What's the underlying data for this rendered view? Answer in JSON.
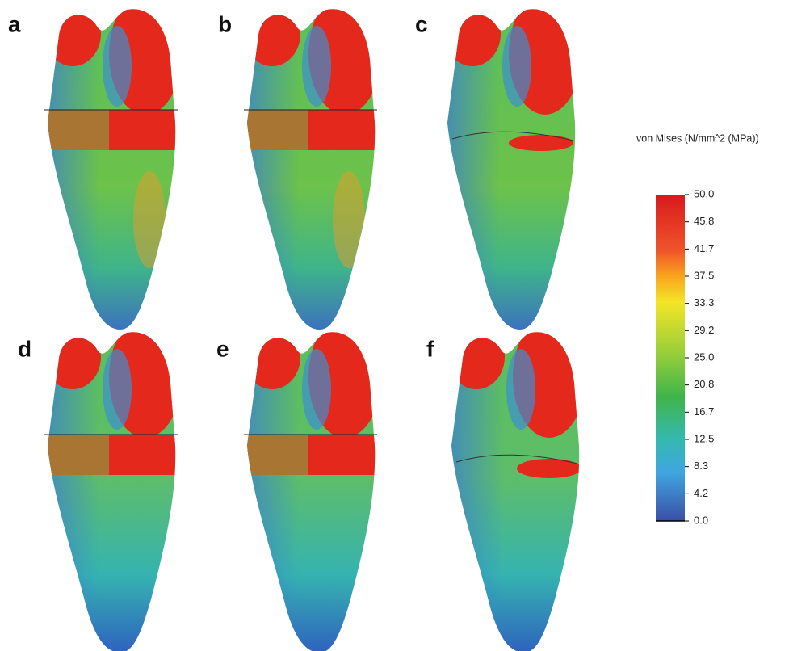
{
  "panels": [
    {
      "label": "a"
    },
    {
      "label": "b"
    },
    {
      "label": "c"
    },
    {
      "label": "d"
    },
    {
      "label": "e"
    },
    {
      "label": "f"
    }
  ],
  "legend": {
    "title": "von Mises (N/mm^2 (MPa))",
    "ticks": [
      "50.0",
      "45.8",
      "41.7",
      "37.5",
      "33.3",
      "29.2",
      "25.0",
      "20.8",
      "16.7",
      "12.5",
      "8.3",
      "4.2",
      "0.0"
    ]
  }
}
